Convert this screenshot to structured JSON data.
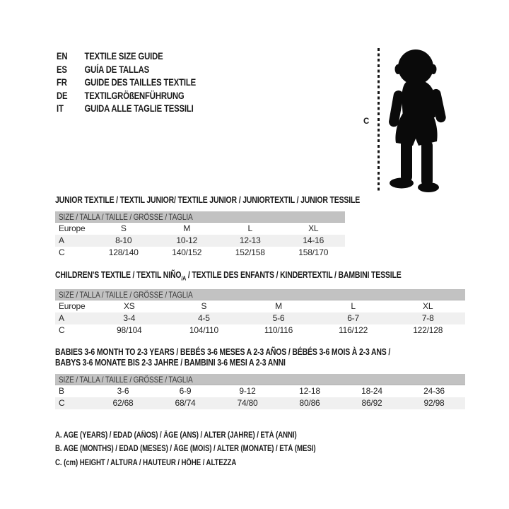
{
  "colors": {
    "bar_gray": "#c2c2c2",
    "stripe_gray": "#f0f0f0",
    "ink": "#1a1a1a",
    "silhouette": "#0a0a0a"
  },
  "languages": [
    {
      "code": "EN",
      "label": "TEXTILE SIZE GUIDE"
    },
    {
      "code": "ES",
      "label": "GUÍA DE TALLAS"
    },
    {
      "code": "FR",
      "label": "GUIDE DES TAILLES TEXTILE"
    },
    {
      "code": "DE",
      "label": "TEXTILGRÖßENFÜHRUNG"
    },
    {
      "code": "IT",
      "label": "GUIDA ALLE TAGLIE TESSILI"
    }
  ],
  "figure": {
    "measure_label": "C"
  },
  "sections": [
    {
      "id": "junior",
      "title_lines": [
        "JUNIOR TEXTILE / TEXTIL JUNIOR/ TEXTILE JUNIOR / JUNIORTEXTIL / JUNIOR TESSILE"
      ],
      "size_header": "SIZE / TALLA / TAILLE / GRÖSSE / TAGLIA",
      "rows": [
        {
          "label": "Europe",
          "values": [
            "S",
            "M",
            "L",
            "XL"
          ],
          "shaded": false
        },
        {
          "label": "A",
          "values": [
            "8-10",
            "10-12",
            "12-13",
            "14-16"
          ],
          "shaded": true
        },
        {
          "label": "C",
          "values": [
            "128/140",
            "140/152",
            "152/158",
            "158/170"
          ],
          "shaded": false
        }
      ]
    },
    {
      "id": "children",
      "title_parts": [
        {
          "text": "CHILDREN'S TEXTILE / TEXTIL NIÑO"
        },
        {
          "text": "/A",
          "sub": true
        },
        {
          "text": " / TEXTILE DES ENFANTS / KINDERTEXTIL / BAMBINI TESSILE"
        }
      ],
      "size_header": "SIZE / TALLA / TAILLE / GRÖSSE / TAGLIA",
      "rows": [
        {
          "label": "Europe",
          "values": [
            "XS",
            "S",
            "M",
            "L",
            "XL"
          ],
          "shaded": false
        },
        {
          "label": "A",
          "values": [
            "3-4",
            "4-5",
            "5-6",
            "6-7",
            "7-8"
          ],
          "shaded": true
        },
        {
          "label": "C",
          "values": [
            "98/104",
            "104/110",
            "110/116",
            "116/122",
            "122/128"
          ],
          "shaded": false
        }
      ]
    },
    {
      "id": "babies",
      "title_lines": [
        "BABIES 3-6 MONTH TO 2-3 YEARS / BEBÉS 3-6 MESES A 2-3 AÑOS / BÉBÉS 3-6 MOIS À 2-3 ANS /",
        "BABYS 3-6 MONATE BIS 2-3 JAHRE / BAMBINI 3-6 MESI A 2-3 ANNI"
      ],
      "size_header": "SIZE / TALLA / TAILLE / GRÖSSE / TAGLIA",
      "rows": [
        {
          "label": "B",
          "values": [
            "3-6",
            "6-9",
            "9-12",
            "12-18",
            "18-24",
            "24-36"
          ],
          "shaded": false
        },
        {
          "label": "C",
          "values": [
            "62/68",
            "68/74",
            "74/80",
            "80/86",
            "86/92",
            "92/98"
          ],
          "shaded": true
        }
      ]
    }
  ],
  "legend": {
    "lines": [
      "A. AGE (YEARS) / EDAD (AÑOS) / ÂGE (ANS) / ALTER (JAHRE) / ETÀ (ANNI)",
      "B. AGE (MONTHS) / EDAD (MESES) / ÂGE (MOIS) / ALTER (MONATE) / ETÀ (MESI)",
      "C. (cm) HEIGHT / ALTURA / HAUTEUR / HÖHE / ALTEZZA"
    ]
  }
}
